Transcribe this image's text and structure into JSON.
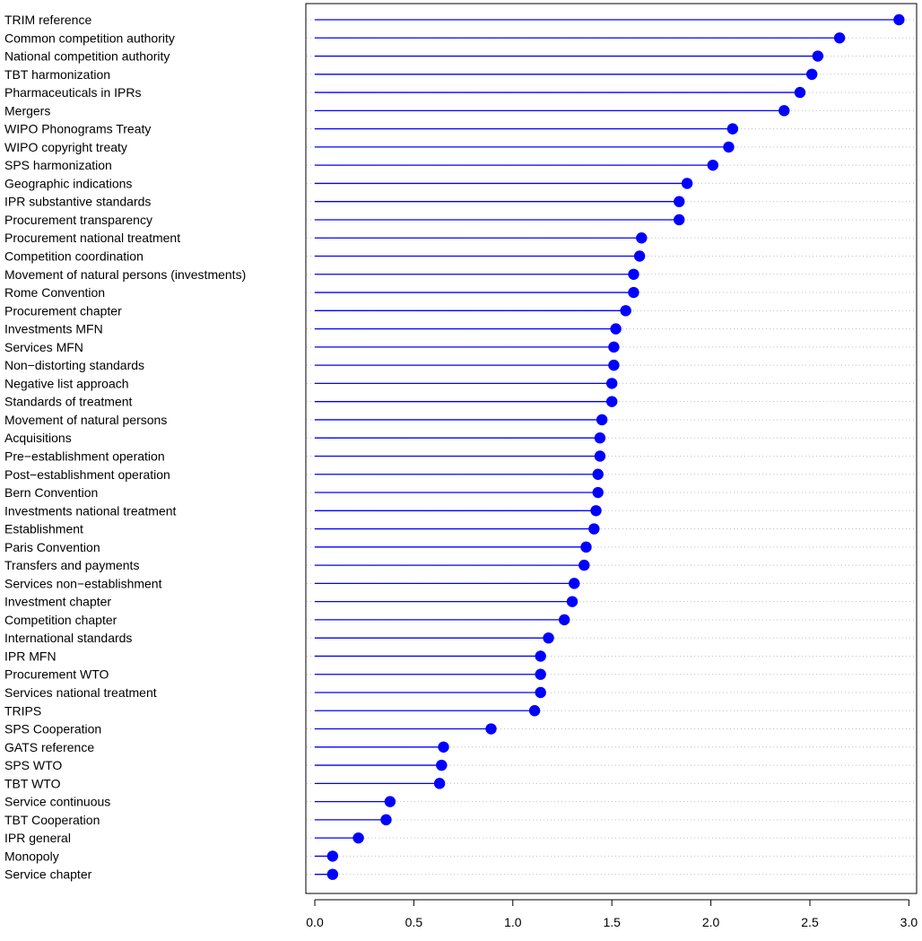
{
  "chart_data": {
    "type": "lollipop",
    "orientation": "horizontal",
    "title": "",
    "xlabel": "",
    "ylabel": "",
    "xlim": [
      0,
      3.0
    ],
    "x_ticks": [
      0.0,
      0.5,
      1.0,
      1.5,
      2.0,
      2.5,
      3.0
    ],
    "x_tick_labels": [
      "0.0",
      "0.5",
      "1.0",
      "1.5",
      "2.0",
      "2.5",
      "3.0"
    ],
    "grid": "dotted horizontal guide line per category",
    "colors": {
      "stem": "#0000ff",
      "point": "#0000ff",
      "guide": "#bebebe",
      "axis": "#000000",
      "text": "#000000"
    },
    "categories": [
      "TRIM reference",
      "Common competition authority",
      "National competition authority",
      "TBT harmonization",
      "Pharmaceuticals in IPRs",
      "Mergers",
      "WIPO Phonograms Treaty",
      "WIPO copyright treaty",
      "SPS harmonization",
      "Geographic indications",
      "IPR substantive standards",
      "Procurement transparency",
      "Procurement national treatment",
      "Competition coordination",
      "Movement of natural persons (investments)",
      "Rome Convention",
      "Procurement chapter",
      "Investments MFN",
      "Services MFN",
      "Non−distorting standards",
      "Negative list approach",
      "Standards of treatment",
      "Movement of natural persons",
      "Acquisitions",
      "Pre−establishment operation",
      "Post−establishment operation",
      "Bern Convention",
      "Investments national treatment",
      "Establishment",
      "Paris Convention",
      "Transfers and payments",
      "Services non−establishment",
      "Investment chapter",
      "Competition chapter",
      "International standards",
      "IPR MFN",
      "Procurement WTO",
      "Services national treatment",
      "TRIPS",
      "SPS Cooperation",
      "GATS reference",
      "SPS WTO",
      "TBT WTO",
      "Service continuous",
      "TBT Cooperation",
      "IPR general",
      "Monopoly",
      "Service chapter"
    ],
    "values": [
      2.95,
      2.65,
      2.54,
      2.51,
      2.45,
      2.37,
      2.11,
      2.09,
      2.01,
      1.88,
      1.84,
      1.84,
      1.65,
      1.64,
      1.61,
      1.61,
      1.57,
      1.52,
      1.51,
      1.51,
      1.5,
      1.5,
      1.45,
      1.44,
      1.44,
      1.43,
      1.43,
      1.42,
      1.41,
      1.37,
      1.36,
      1.31,
      1.3,
      1.26,
      1.18,
      1.14,
      1.14,
      1.14,
      1.11,
      0.89,
      0.65,
      0.64,
      0.63,
      0.38,
      0.36,
      0.22,
      0.09,
      0.09
    ]
  }
}
